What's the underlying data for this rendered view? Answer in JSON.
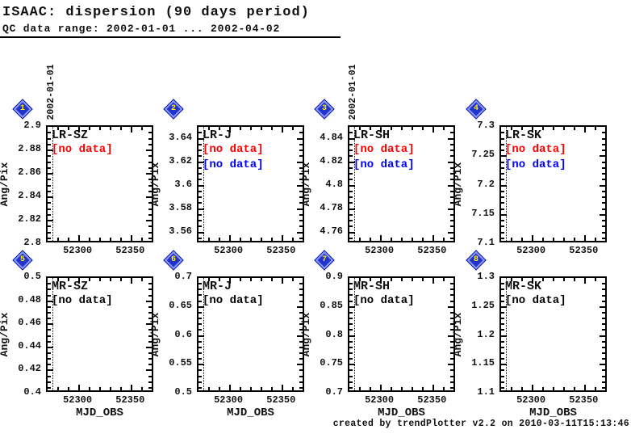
{
  "header": {
    "title": "ISAAC: dispersion (90 days period)",
    "subtitle": "QC data range: 2002-01-01 ... 2002-04-02"
  },
  "footer": {
    "credit": "created by trendPlotter v2.2 on 2010-03-11T15:13:46"
  },
  "colors": {
    "axis": "#000000",
    "no_data_red": "#ff0000",
    "no_data_blue": "#0000ff",
    "no_data_black": "#000000",
    "marker_fill": "#2233cc",
    "marker_edge": "#8899ff",
    "marker_number": "#ffee00"
  },
  "chart_data": {
    "type": "scatter",
    "title": "ISAAC: dispersion (90 days period)",
    "xlabel": "MJD_OBS",
    "ylabel": "Ang/Pix",
    "xlim": [
      52270,
      52372
    ],
    "xticks": [
      52300,
      52350
    ],
    "x_minor_step": 10,
    "grid": false,
    "date_marker": {
      "label": "2002-01-01",
      "mjd": 52275
    },
    "panels": [
      {
        "n": "1",
        "title": "LR-SZ",
        "ylim": [
          2.8,
          2.9
        ],
        "yticks": [
          2.8,
          2.82,
          2.84,
          2.86,
          2.88,
          2.9
        ],
        "ytick_labels": [
          "2.8",
          "2.82",
          "2.84",
          "2.86",
          "2.88",
          "2.9"
        ],
        "y_minor_div": 4,
        "series": [],
        "annotations": [
          {
            "text": "[no data]",
            "color": "#ff0000"
          }
        ],
        "date_label_visible": true,
        "show_xlabel": false
      },
      {
        "n": "2",
        "title": "LR-J",
        "ylim": [
          3.55,
          3.65
        ],
        "yticks": [
          3.56,
          3.58,
          3.6,
          3.62,
          3.64
        ],
        "ytick_labels": [
          "3.56",
          "3.58",
          "3.6",
          "3.62",
          "3.64"
        ],
        "y_minor_div": 4,
        "series": [],
        "annotations": [
          {
            "text": "[no data]",
            "color": "#ff0000"
          },
          {
            "text": "[no data]",
            "color": "#0000ff"
          }
        ],
        "date_label_visible": false,
        "show_xlabel": false
      },
      {
        "n": "3",
        "title": "LR-SH",
        "ylim": [
          4.75,
          4.85
        ],
        "yticks": [
          4.76,
          4.78,
          4.8,
          4.82,
          4.84
        ],
        "ytick_labels": [
          "4.76",
          "4.78",
          "4.8",
          "4.82",
          "4.84"
        ],
        "y_minor_div": 4,
        "series": [],
        "annotations": [
          {
            "text": "[no data]",
            "color": "#ff0000"
          },
          {
            "text": "[no data]",
            "color": "#0000ff"
          }
        ],
        "date_label_visible": true,
        "show_xlabel": false
      },
      {
        "n": "4",
        "title": "LR-SK",
        "ylim": [
          7.1,
          7.3
        ],
        "yticks": [
          7.1,
          7.15,
          7.2,
          7.25,
          7.3
        ],
        "ytick_labels": [
          "7.1",
          "7.15",
          "7.2",
          "7.25",
          "7.3"
        ],
        "y_minor_div": 5,
        "series": [],
        "annotations": [
          {
            "text": "[no data]",
            "color": "#ff0000"
          },
          {
            "text": "[no data]",
            "color": "#0000ff"
          }
        ],
        "date_label_visible": false,
        "show_xlabel": false
      },
      {
        "n": "5",
        "title": "MR-SZ",
        "ylim": [
          0.4,
          0.5
        ],
        "yticks": [
          0.4,
          0.42,
          0.44,
          0.46,
          0.48,
          0.5
        ],
        "ytick_labels": [
          "0.4",
          "0.42",
          "0.44",
          "0.46",
          "0.48",
          "0.5"
        ],
        "y_minor_div": 4,
        "series": [],
        "annotations": [
          {
            "text": "[no data]",
            "color": "#000000"
          }
        ],
        "date_label_visible": false,
        "show_xlabel": true
      },
      {
        "n": "6",
        "title": "MR-J",
        "ylim": [
          0.5,
          0.7
        ],
        "yticks": [
          0.5,
          0.55,
          0.6,
          0.65,
          0.7
        ],
        "ytick_labels": [
          "0.5",
          "0.55",
          "0.6",
          "0.65",
          "0.7"
        ],
        "y_minor_div": 5,
        "series": [],
        "annotations": [
          {
            "text": "[no data]",
            "color": "#000000"
          }
        ],
        "date_label_visible": false,
        "show_xlabel": true
      },
      {
        "n": "7",
        "title": "MR-SH",
        "ylim": [
          0.7,
          0.9
        ],
        "yticks": [
          0.7,
          0.75,
          0.8,
          0.85,
          0.9
        ],
        "ytick_labels": [
          "0.7",
          "0.75",
          "0.8",
          "0.85",
          "0.9"
        ],
        "y_minor_div": 5,
        "series": [],
        "annotations": [
          {
            "text": "[no data]",
            "color": "#000000"
          }
        ],
        "date_label_visible": false,
        "show_xlabel": true
      },
      {
        "n": "8",
        "title": "MR-SK",
        "ylim": [
          1.1,
          1.3
        ],
        "yticks": [
          1.1,
          1.15,
          1.2,
          1.25,
          1.3
        ],
        "ytick_labels": [
          "1.1",
          "1.15",
          "1.2",
          "1.25",
          "1.3"
        ],
        "y_minor_div": 5,
        "series": [],
        "annotations": [
          {
            "text": "[no data]",
            "color": "#000000"
          }
        ],
        "date_label_visible": false,
        "show_xlabel": true
      }
    ]
  }
}
